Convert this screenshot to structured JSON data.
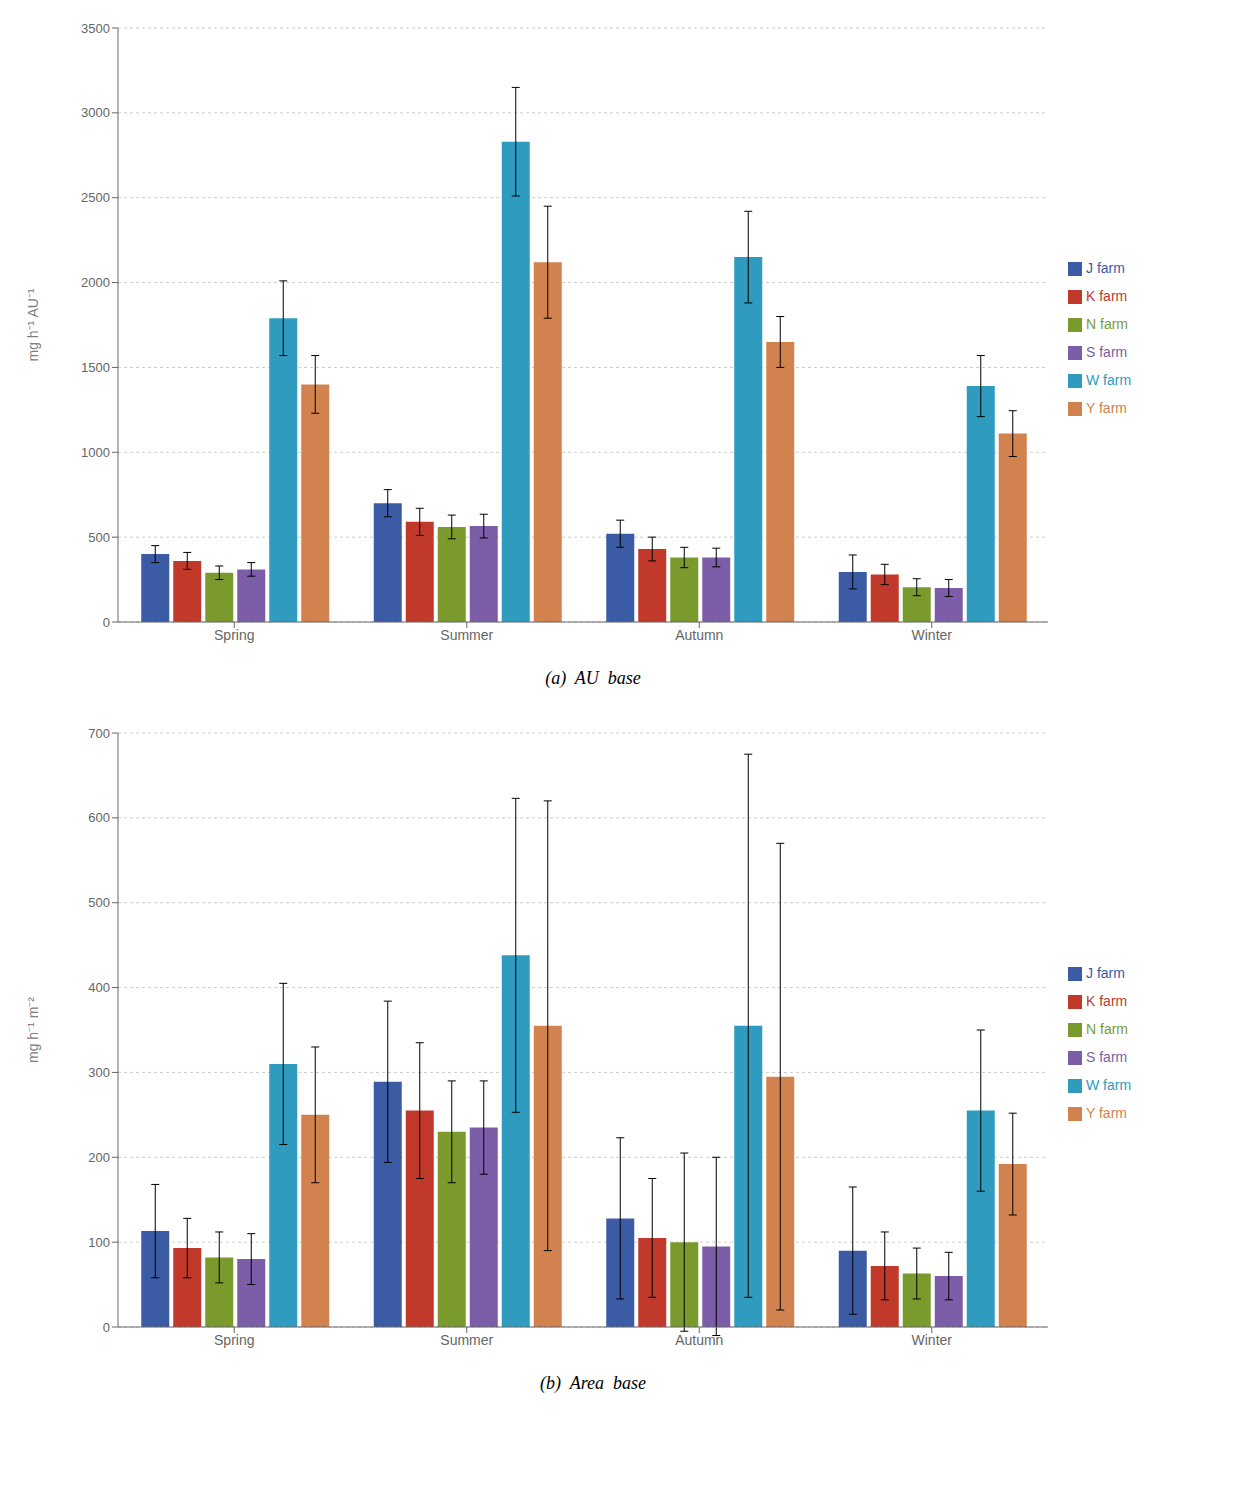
{
  "chart_data": [
    {
      "type": "bar",
      "title": "(a)  AU  base",
      "ylabel": "mg h⁻¹ AU⁻¹",
      "categories": [
        "Spring",
        "Summer",
        "Autumn",
        "Winter"
      ],
      "series": [
        {
          "name": "J farm",
          "color": "#3b5ba5",
          "values": [
            400,
            700,
            520,
            295
          ],
          "errors": [
            50,
            80,
            80,
            100
          ]
        },
        {
          "name": "K farm",
          "color": "#c0392b",
          "values": [
            360,
            590,
            430,
            280
          ],
          "errors": [
            50,
            80,
            70,
            60
          ]
        },
        {
          "name": "N farm",
          "color": "#7a9a2e",
          "values": [
            290,
            560,
            380,
            205
          ],
          "errors": [
            40,
            70,
            60,
            50
          ]
        },
        {
          "name": "S farm",
          "color": "#7b5ea7",
          "values": [
            310,
            565,
            380,
            200
          ],
          "errors": [
            40,
            70,
            55,
            50
          ]
        },
        {
          "name": "W farm",
          "color": "#2e9bbf",
          "values": [
            1790,
            2830,
            2150,
            1390
          ],
          "errors": [
            220,
            320,
            270,
            180
          ]
        },
        {
          "name": "Y farm",
          "color": "#d2824e",
          "values": [
            1400,
            2120,
            1650,
            1110
          ],
          "errors": [
            170,
            330,
            150,
            135
          ]
        }
      ],
      "ylim": [
        0,
        3500
      ],
      "yticks": [
        0,
        500,
        1000,
        1500,
        2000,
        2500,
        3000,
        3500
      ],
      "grid": true,
      "legend": "right"
    },
    {
      "type": "bar",
      "title": "(b)  Area  base",
      "ylabel": "mg h⁻¹ m⁻²",
      "categories": [
        "Spring",
        "Summer",
        "Autumn",
        "Winter"
      ],
      "series": [
        {
          "name": "J farm",
          "color": "#3b5ba5",
          "values": [
            113,
            289,
            128,
            90
          ],
          "errors": [
            55,
            95,
            95,
            75
          ]
        },
        {
          "name": "K farm",
          "color": "#c0392b",
          "values": [
            93,
            255,
            105,
            72
          ],
          "errors": [
            35,
            80,
            70,
            40
          ]
        },
        {
          "name": "N farm",
          "color": "#7a9a2e",
          "values": [
            82,
            230,
            100,
            63
          ],
          "errors": [
            30,
            60,
            105,
            30
          ]
        },
        {
          "name": "S farm",
          "color": "#7b5ea7",
          "values": [
            80,
            235,
            95,
            60
          ],
          "errors": [
            30,
            55,
            105,
            28
          ]
        },
        {
          "name": "W farm",
          "color": "#2e9bbf",
          "values": [
            310,
            438,
            355,
            255
          ],
          "errors": [
            95,
            185,
            320,
            95
          ]
        },
        {
          "name": "Y farm",
          "color": "#d2824e",
          "values": [
            250,
            355,
            295,
            192
          ],
          "errors": [
            80,
            265,
            275,
            60
          ]
        }
      ],
      "ylim": [
        0,
        700
      ],
      "yticks": [
        0,
        100,
        200,
        300,
        400,
        500,
        600,
        700
      ],
      "grid": true,
      "legend": "right"
    }
  ]
}
